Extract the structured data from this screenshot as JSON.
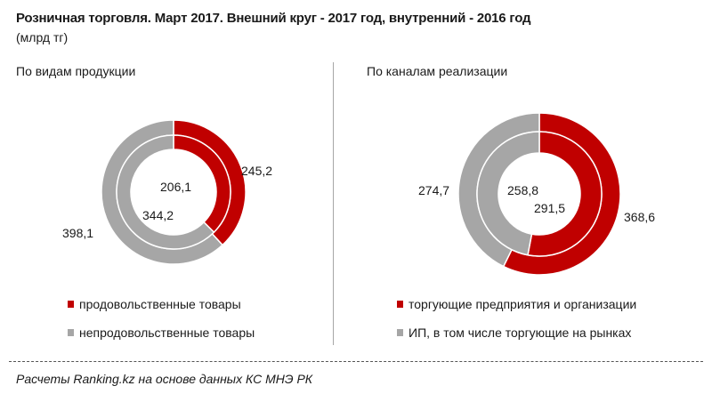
{
  "header": {
    "title": "Розничная  торговля.  Март 2017. Внешний  круг  - 2017 год, внутренний  - 2016 год",
    "unit": "(млрд тг)"
  },
  "colors": {
    "red": "#c00000",
    "gray": "#a6a6a6"
  },
  "panels": [
    {
      "subtitle": "По видам продукции",
      "legend": [
        "продовольственные товары",
        "непродовольственные товары"
      ],
      "labels": {
        "outer_red": "245,2",
        "outer_gray": "398,1",
        "inner_red": "206,1",
        "inner_gray": "344,2"
      }
    },
    {
      "subtitle": "По каналам реализации",
      "legend": [
        "торгующие предприятия и организации",
        "ИП, в том числе торгующие на рынках"
      ],
      "labels": {
        "outer_red": "368,6",
        "outer_gray": "274,7",
        "inner_red": "291,5",
        "inner_gray": "258,8"
      }
    }
  ],
  "footer": {
    "source": "Расчеты Ranking.kz на основе данных  КС МНЭ РК"
  },
  "chart_data": [
    {
      "type": "pie",
      "subtype": "doughnut",
      "title": "По видам продукции",
      "categories": [
        "продовольственные товары",
        "непродовольственные товары"
      ],
      "series": [
        {
          "name": "2017 (внешний круг)",
          "values": [
            245.2,
            398.1
          ]
        },
        {
          "name": "2016 (внутренний круг)",
          "values": [
            206.1,
            344.2
          ]
        }
      ],
      "unit": "млрд тг",
      "legend_position": "bottom"
    },
    {
      "type": "pie",
      "subtype": "doughnut",
      "title": "По каналам реализации",
      "categories": [
        "торгующие предприятия и организации",
        "ИП, в том числе торгующие на рынках"
      ],
      "series": [
        {
          "name": "2017 (внешний круг)",
          "values": [
            368.6,
            274.7
          ]
        },
        {
          "name": "2016 (внутренний круг)",
          "values": [
            291.5,
            258.8
          ]
        }
      ],
      "unit": "млрд тг",
      "legend_position": "bottom"
    }
  ]
}
